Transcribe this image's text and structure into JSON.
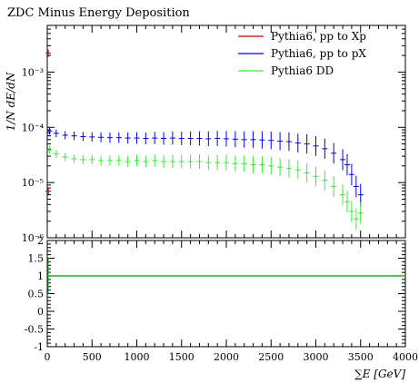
{
  "chart_data": {
    "type": "scatter",
    "title": "ZDC Minus Energy Deposition",
    "xlabel": "∑E [GeV]",
    "ylabel": "1/N dE/dN",
    "xlim": [
      0,
      4000
    ],
    "ylim": [
      1e-06,
      0.007
    ],
    "yscale": "log",
    "xticks": [
      0,
      500,
      1000,
      1500,
      2000,
      2500,
      3000,
      3500,
      4000
    ],
    "yticks": [
      {
        "label": "10⁻⁶",
        "value": 1e-06
      },
      {
        "label": "10⁻⁵",
        "value": 1e-05
      },
      {
        "label": "10⁻⁴",
        "value": 0.0001
      },
      {
        "label": "10⁻³",
        "value": 0.001
      }
    ],
    "legend_position": "top-right",
    "series": [
      {
        "name": "Pythia6, pp to Xp",
        "color": "#cc0000",
        "points": [
          [
            12,
            7e-06
          ],
          [
            12,
            0.0022
          ]
        ]
      },
      {
        "name": "Pythia6, pp to pX",
        "color": "#0000ee",
        "points": [
          [
            25,
            8.6e-05
          ],
          [
            100,
            7.8e-05
          ],
          [
            200,
            7.2e-05
          ],
          [
            300,
            7e-05
          ],
          [
            400,
            6.8e-05
          ],
          [
            500,
            6.7e-05
          ],
          [
            600,
            6.6e-05
          ],
          [
            700,
            6.5e-05
          ],
          [
            800,
            6.5e-05
          ],
          [
            900,
            6.4e-05
          ],
          [
            1000,
            6.4e-05
          ],
          [
            1100,
            6.3e-05
          ],
          [
            1200,
            6.4e-05
          ],
          [
            1300,
            6.3e-05
          ],
          [
            1400,
            6.4e-05
          ],
          [
            1500,
            6.3e-05
          ],
          [
            1600,
            6.3e-05
          ],
          [
            1700,
            6.3e-05
          ],
          [
            1800,
            6.2e-05
          ],
          [
            1900,
            6.3e-05
          ],
          [
            2000,
            6.2e-05
          ],
          [
            2100,
            6.1e-05
          ],
          [
            2200,
            6e-05
          ],
          [
            2300,
            6e-05
          ],
          [
            2400,
            5.9e-05
          ],
          [
            2500,
            5.8e-05
          ],
          [
            2600,
            5.6e-05
          ],
          [
            2700,
            5.5e-05
          ],
          [
            2800,
            5.2e-05
          ],
          [
            2900,
            5e-05
          ],
          [
            3000,
            4.6e-05
          ],
          [
            3100,
            4.1e-05
          ],
          [
            3200,
            3.4e-05
          ],
          [
            3300,
            2.6e-05
          ],
          [
            3350,
            2.1e-05
          ],
          [
            3400,
            1.4e-05
          ],
          [
            3450,
            8.5e-06
          ],
          [
            3500,
            6e-06
          ]
        ]
      },
      {
        "name": "Pythia6 DD",
        "color": "#33ee33",
        "points": [
          [
            25,
            3.9e-05
          ],
          [
            100,
            3.3e-05
          ],
          [
            200,
            2.9e-05
          ],
          [
            300,
            2.7e-05
          ],
          [
            400,
            2.6e-05
          ],
          [
            500,
            2.6e-05
          ],
          [
            600,
            2.5e-05
          ],
          [
            700,
            2.5e-05
          ],
          [
            800,
            2.5e-05
          ],
          [
            900,
            2.4e-05
          ],
          [
            1000,
            2.5e-05
          ],
          [
            1100,
            2.4e-05
          ],
          [
            1200,
            2.5e-05
          ],
          [
            1300,
            2.4e-05
          ],
          [
            1400,
            2.4e-05
          ],
          [
            1500,
            2.4e-05
          ],
          [
            1600,
            2.4e-05
          ],
          [
            1700,
            2.4e-05
          ],
          [
            1800,
            2.3e-05
          ],
          [
            1900,
            2.3e-05
          ],
          [
            2000,
            2.3e-05
          ],
          [
            2100,
            2.2e-05
          ],
          [
            2200,
            2.2e-05
          ],
          [
            2300,
            2.1e-05
          ],
          [
            2400,
            2.1e-05
          ],
          [
            2500,
            2e-05
          ],
          [
            2600,
            1.9e-05
          ],
          [
            2700,
            1.8e-05
          ],
          [
            2800,
            1.7e-05
          ],
          [
            2900,
            1.5e-05
          ],
          [
            3000,
            1.3e-05
          ],
          [
            3100,
            1.1e-05
          ],
          [
            3200,
            8.5e-06
          ],
          [
            3300,
            6e-06
          ],
          [
            3350,
            4.5e-06
          ],
          [
            3400,
            3e-06
          ],
          [
            3450,
            2.2e-06
          ],
          [
            3500,
            2.8e-06
          ]
        ]
      }
    ],
    "ratio": {
      "ylim": [
        -1,
        2
      ],
      "yticks": [
        -1,
        -0.5,
        0,
        0.5,
        1,
        1.5,
        2
      ],
      "line_value": 1,
      "line_color": "#22aa22"
    }
  }
}
